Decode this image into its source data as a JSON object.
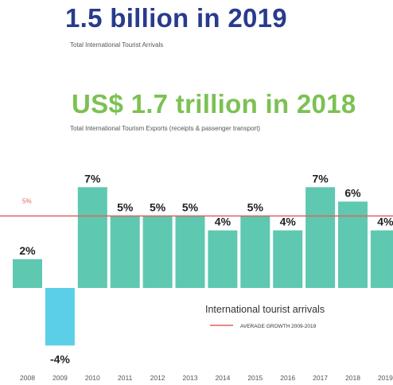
{
  "header": {
    "arrivals_headline": "1.5 billion in 2019",
    "arrivals_caption": "Total International Tourist Arrivals",
    "exports_headline": "US$ 1.7 trillion in 2018",
    "exports_caption": "Total International Tourism Exports (receipts & passenger transport)"
  },
  "colors": {
    "arrivals_headline": "#283b8c",
    "exports_headline": "#7cc152",
    "bar": "#5fc8b0",
    "negative_bar": "#5ccfe8",
    "average_line": "#e06060"
  },
  "chart_data": {
    "type": "bar",
    "categories": [
      "2008",
      "2009",
      "2010",
      "2011",
      "2012",
      "2013",
      "2014",
      "2015",
      "2016",
      "2017",
      "2018",
      "2019"
    ],
    "values": [
      2,
      -4,
      7,
      5,
      5,
      5,
      4,
      5,
      4,
      7,
      6,
      4
    ],
    "value_labels": [
      "2%",
      "-4%",
      "7%",
      "5%",
      "5%",
      "5%",
      "4%",
      "5%",
      "4%",
      "7%",
      "6%",
      "4%"
    ],
    "average_growth": 5,
    "average_label": "5%",
    "legend": {
      "series_title": "International tourist arrivals",
      "line_label": "AVERAGE GROWTH 2009-2019"
    },
    "ylim": [
      -4,
      7
    ],
    "grid": false
  }
}
